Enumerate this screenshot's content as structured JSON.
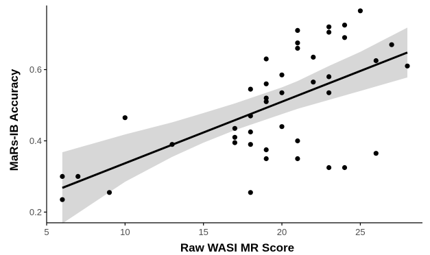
{
  "chart_data": {
    "type": "scatter",
    "title": "",
    "xlabel": "Raw WASI MR Score",
    "ylabel": "MaRs-IB Accuracy",
    "xlim": [
      5,
      28.7
    ],
    "ylim": [
      0.17,
      0.78
    ],
    "x_ticks": [
      5,
      10,
      15,
      20,
      25
    ],
    "y_ticks": [
      0.2,
      0.4,
      0.6
    ],
    "x_tick_labels": [
      "5",
      "10",
      "15",
      "20",
      "25"
    ],
    "y_tick_labels": [
      "0.2",
      "0.4",
      "0.6"
    ],
    "grid": false,
    "legend": "none",
    "colors": {
      "points": "#000000",
      "fit_line": "#000000",
      "confidence_band": "#d3d3d3",
      "axis": "#000000",
      "tick_label": "#4d4d4d"
    },
    "points": [
      {
        "x": 6,
        "y": 0.3
      },
      {
        "x": 6,
        "y": 0.235
      },
      {
        "x": 7,
        "y": 0.3
      },
      {
        "x": 9,
        "y": 0.255
      },
      {
        "x": 10,
        "y": 0.465
      },
      {
        "x": 13,
        "y": 0.39
      },
      {
        "x": 17,
        "y": 0.435
      },
      {
        "x": 17,
        "y": 0.41
      },
      {
        "x": 17,
        "y": 0.395
      },
      {
        "x": 18,
        "y": 0.545
      },
      {
        "x": 18,
        "y": 0.47
      },
      {
        "x": 18,
        "y": 0.425
      },
      {
        "x": 18,
        "y": 0.39
      },
      {
        "x": 18,
        "y": 0.255
      },
      {
        "x": 19,
        "y": 0.63
      },
      {
        "x": 19,
        "y": 0.56
      },
      {
        "x": 19,
        "y": 0.52
      },
      {
        "x": 19,
        "y": 0.51
      },
      {
        "x": 19,
        "y": 0.375
      },
      {
        "x": 19,
        "y": 0.35
      },
      {
        "x": 20,
        "y": 0.585
      },
      {
        "x": 20,
        "y": 0.535
      },
      {
        "x": 20,
        "y": 0.44
      },
      {
        "x": 21,
        "y": 0.71
      },
      {
        "x": 21,
        "y": 0.675
      },
      {
        "x": 21,
        "y": 0.66
      },
      {
        "x": 21,
        "y": 0.4
      },
      {
        "x": 21,
        "y": 0.35
      },
      {
        "x": 22,
        "y": 0.635
      },
      {
        "x": 22,
        "y": 0.565
      },
      {
        "x": 23,
        "y": 0.72
      },
      {
        "x": 23,
        "y": 0.705
      },
      {
        "x": 23,
        "y": 0.58
      },
      {
        "x": 23,
        "y": 0.535
      },
      {
        "x": 23,
        "y": 0.325
      },
      {
        "x": 24,
        "y": 0.725
      },
      {
        "x": 24,
        "y": 0.69
      },
      {
        "x": 24,
        "y": 0.325
      },
      {
        "x": 25,
        "y": 0.765
      },
      {
        "x": 26,
        "y": 0.625
      },
      {
        "x": 26,
        "y": 0.365
      },
      {
        "x": 27,
        "y": 0.67
      },
      {
        "x": 28,
        "y": 0.61
      }
    ],
    "fit_line": {
      "x": [
        6,
        28
      ],
      "y": [
        0.268,
        0.648
      ]
    },
    "confidence_band": {
      "x": [
        6,
        10,
        13,
        15,
        17,
        19,
        20,
        21,
        23,
        25,
        28
      ],
      "lower": [
        0.168,
        0.285,
        0.355,
        0.395,
        0.43,
        0.46,
        0.475,
        0.49,
        0.515,
        0.54,
        0.578
      ],
      "upper": [
        0.368,
        0.418,
        0.452,
        0.478,
        0.505,
        0.535,
        0.55,
        0.568,
        0.61,
        0.65,
        0.718
      ]
    }
  }
}
